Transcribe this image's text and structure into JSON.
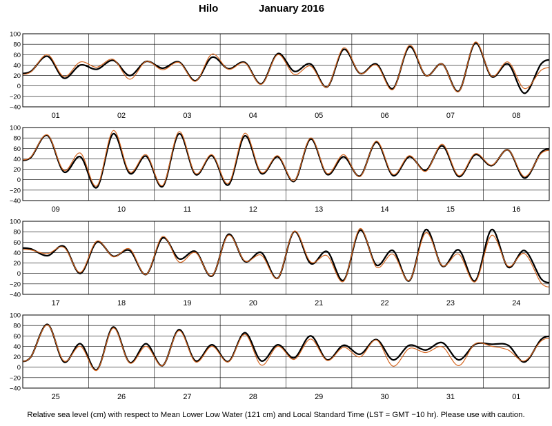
{
  "title": {
    "place": "Hilo",
    "month": "January   2016"
  },
  "footnote": "Relative sea level (cm) with respect to Mean Lower Low Water (121 cm) and Local Standard Time (LST = GMT −10 hr). Please use with caution.",
  "colors": {
    "observed": "#000000",
    "predicted": "#d4641e",
    "grid": "#000000",
    "background": "#ffffff"
  },
  "chart_data": {
    "type": "line",
    "x_unit": "day",
    "y_unit": "cm",
    "ylim": [
      -40,
      100
    ],
    "yticks": [
      -40,
      -20,
      0,
      20,
      40,
      60,
      80,
      100
    ],
    "grid": true,
    "series_styles": [
      {
        "color": "#000000",
        "width": "thick"
      },
      {
        "color": "#d4641e",
        "width": "thin"
      }
    ],
    "panels": [
      {
        "days": [
          "01",
          "02",
          "03",
          "04",
          "05",
          "06",
          "07",
          "08"
        ],
        "series": [
          {
            "values": [
              28,
              57,
              15,
              40,
              32,
              49,
              20,
              47,
              34,
              46,
              10,
              55,
              33,
              45,
              4,
              62,
              28,
              42,
              -2,
              70,
              24,
              42,
              -5,
              75,
              20,
              42,
              -10,
              82,
              18,
              42,
              -14,
              42
            ]
          },
          {
            "values": [
              27,
              60,
              18,
              46,
              36,
              51,
              13,
              47,
              31,
              45,
              9,
              61,
              32,
              44,
              3,
              60,
              22,
              38,
              -2,
              73,
              24,
              40,
              -7,
              78,
              20,
              42,
              -11,
              84,
              19,
              46,
              -5,
              30
            ]
          }
        ]
      },
      {
        "days": [
          "09",
          "10",
          "11",
          "12",
          "13",
          "14",
          "15",
          "16"
        ],
        "series": [
          {
            "values": [
              43,
              85,
              15,
              44,
              -15,
              88,
              12,
              45,
              -13,
              88,
              10,
              46,
              -10,
              84,
              12,
              44,
              -3,
              78,
              10,
              44,
              7,
              72,
              8,
              44,
              18,
              65,
              6,
              48,
              27,
              57,
              3,
              52
            ]
          },
          {
            "values": [
              44,
              86,
              18,
              51,
              -12,
              94,
              15,
              48,
              -11,
              92,
              12,
              48,
              -7,
              89,
              14,
              46,
              -2,
              80,
              12,
              48,
              6,
              74,
              10,
              46,
              16,
              68,
              8,
              50,
              28,
              57,
              6,
              50
            ]
          }
        ]
      },
      {
        "days": [
          "17",
          "18",
          "19",
          "20",
          "21",
          "22",
          "23",
          "24"
        ],
        "series": [
          {
            "values": [
              47,
              34,
              52,
              0,
              60,
              33,
              44,
              -2,
              68,
              28,
              42,
              -5,
              75,
              23,
              40,
              -9,
              80,
              19,
              42,
              -13,
              83,
              16,
              44,
              -14,
              84,
              14,
              45,
              -14,
              84,
              12,
              44,
              -10
            ]
          },
          {
            "values": [
              45,
              38,
              50,
              2,
              62,
              32,
              47,
              -2,
              71,
              22,
              40,
              -4,
              73,
              24,
              35,
              -9,
              81,
              22,
              34,
              -15,
              86,
              12,
              37,
              -13,
              78,
              15,
              37,
              -16,
              73,
              14,
              38,
              -18
            ]
          }
        ]
      },
      {
        "days": [
          "25",
          "26",
          "27",
          "28",
          "29",
          "30",
          "31",
          "01"
        ],
        "series": [
          {
            "values": [
              20,
              82,
              10,
              45,
              -5,
              77,
              9,
              45,
              3,
              72,
              12,
              43,
              11,
              66,
              12,
              43,
              18,
              60,
              14,
              42,
              25,
              53,
              14,
              42,
              33,
              47,
              14,
              44,
              44,
              42,
              10,
              53
            ]
          },
          {
            "values": [
              20,
              81,
              12,
              40,
              -6,
              75,
              8,
              40,
              3,
              70,
              10,
              40,
              10,
              63,
              4,
              40,
              15,
              54,
              13,
              38,
              20,
              52,
              2,
              36,
              28,
              39,
              3,
              45,
              40,
              33,
              12,
              50
            ]
          }
        ]
      }
    ]
  }
}
